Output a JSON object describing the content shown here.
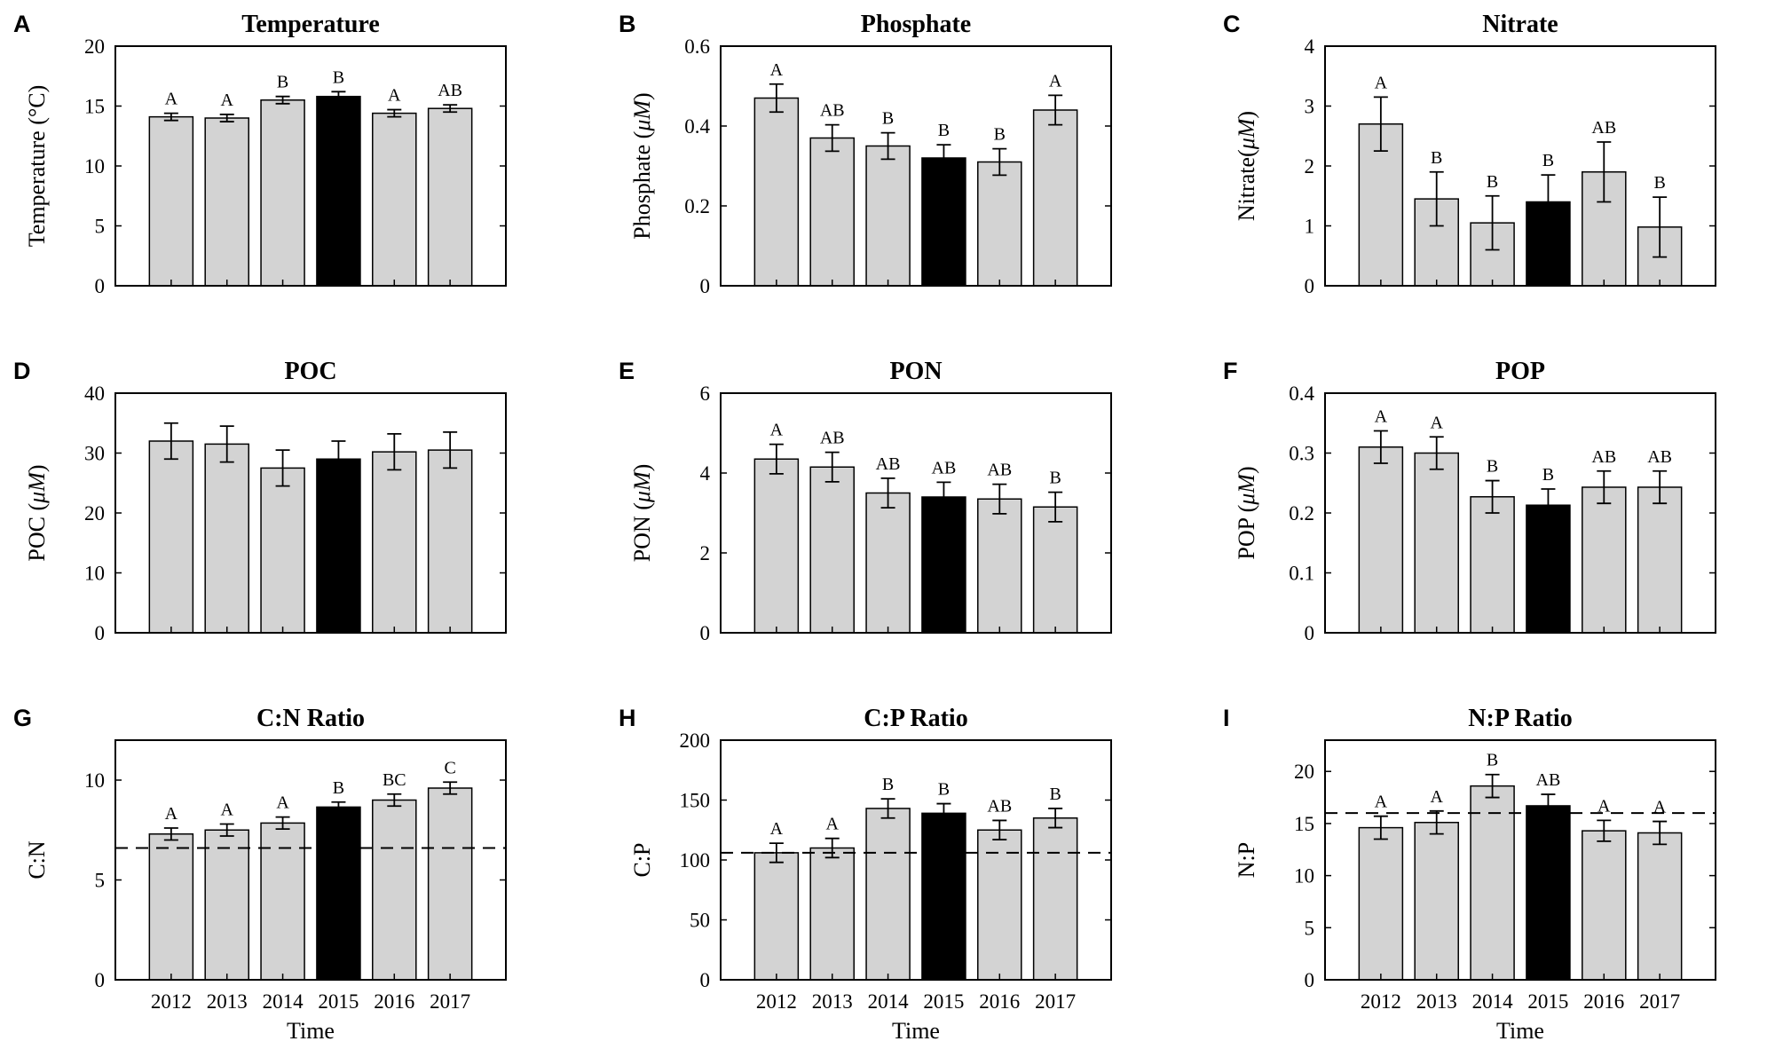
{
  "figure": {
    "common_x_label": "Time",
    "colors": {
      "bar": "#d3d3d3",
      "highlight": "#000000",
      "axis": "#000000"
    }
  },
  "chart_data": [
    {
      "letter": "A",
      "type": "bar",
      "title": "Temperature",
      "ylabel_parts": [
        "Temperature (",
        "°",
        "C)"
      ],
      "categories": [
        "2012",
        "2013",
        "2014",
        "2015",
        "2016",
        "2017"
      ],
      "values": [
        14.1,
        14.0,
        15.5,
        15.8,
        14.4,
        14.8
      ],
      "errors": [
        0.3,
        0.3,
        0.3,
        0.4,
        0.3,
        0.3
      ],
      "sig_labels": [
        "A",
        "A",
        "B",
        "B",
        "A",
        "AB"
      ],
      "highlight_index": 3,
      "ylim": [
        0,
        20
      ],
      "yticks": [
        "0",
        "5",
        "10",
        "15",
        "20"
      ],
      "reference_line": null,
      "show_x_labels": false
    },
    {
      "letter": "B",
      "type": "bar",
      "title": "Phosphate",
      "ylabel_parts": [
        "Phosphate (",
        "μM",
        ")"
      ],
      "categories": [
        "2012",
        "2013",
        "2014",
        "2015",
        "2016",
        "2017"
      ],
      "values": [
        0.47,
        0.37,
        0.35,
        0.32,
        0.31,
        0.44
      ],
      "errors": [
        0.035,
        0.033,
        0.033,
        0.033,
        0.033,
        0.037
      ],
      "sig_labels": [
        "A",
        "AB",
        "B",
        "B",
        "B",
        "A"
      ],
      "highlight_index": 3,
      "ylim": [
        0,
        0.6
      ],
      "yticks": [
        "0",
        "0.2",
        "0.4",
        "0.6"
      ],
      "reference_line": null,
      "show_x_labels": false
    },
    {
      "letter": "C",
      "type": "bar",
      "title": "Nitrate",
      "ylabel_parts": [
        "Nitrate(",
        "μM",
        ")"
      ],
      "categories": [
        "2012",
        "2013",
        "2014",
        "2015",
        "2016",
        "2017"
      ],
      "values": [
        2.7,
        1.45,
        1.05,
        1.4,
        1.9,
        0.98
      ],
      "errors": [
        0.45,
        0.45,
        0.45,
        0.45,
        0.5,
        0.5
      ],
      "sig_labels": [
        "A",
        "B",
        "B",
        "B",
        "AB",
        "B"
      ],
      "highlight_index": 3,
      "ylim": [
        0,
        4
      ],
      "yticks": [
        "0",
        "1",
        "2",
        "3",
        "4"
      ],
      "reference_line": null,
      "show_x_labels": false
    },
    {
      "letter": "D",
      "type": "bar",
      "title": "POC",
      "ylabel_parts": [
        "POC (",
        "μM",
        ")"
      ],
      "categories": [
        "2012",
        "2013",
        "2014",
        "2015",
        "2016",
        "2017"
      ],
      "values": [
        32,
        31.5,
        27.5,
        29,
        30.2,
        30.5
      ],
      "errors": [
        3,
        3,
        3,
        3,
        3,
        3
      ],
      "sig_labels": [],
      "highlight_index": 3,
      "ylim": [
        0,
        40
      ],
      "yticks": [
        "0",
        "10",
        "20",
        "30",
        "40"
      ],
      "reference_line": null,
      "show_x_labels": false
    },
    {
      "letter": "E",
      "type": "bar",
      "title": "PON",
      "ylabel_parts": [
        "PON (",
        "μM",
        ")"
      ],
      "categories": [
        "2012",
        "2013",
        "2014",
        "2015",
        "2016",
        "2017"
      ],
      "values": [
        4.35,
        4.15,
        3.5,
        3.4,
        3.35,
        3.15
      ],
      "errors": [
        0.37,
        0.37,
        0.37,
        0.37,
        0.37,
        0.37
      ],
      "sig_labels": [
        "A",
        "AB",
        "AB",
        "AB",
        "AB",
        "B"
      ],
      "highlight_index": 3,
      "ylim": [
        0,
        6
      ],
      "yticks": [
        "0",
        "2",
        "4",
        "6"
      ],
      "reference_line": null,
      "show_x_labels": false
    },
    {
      "letter": "F",
      "type": "bar",
      "title": "POP",
      "ylabel_parts": [
        "POP (",
        "μM",
        ")"
      ],
      "categories": [
        "2012",
        "2013",
        "2014",
        "2015",
        "2016",
        "2017"
      ],
      "values": [
        0.31,
        0.3,
        0.227,
        0.213,
        0.243,
        0.243
      ],
      "errors": [
        0.027,
        0.027,
        0.027,
        0.027,
        0.027,
        0.027
      ],
      "sig_labels": [
        "A",
        "A",
        "B",
        "B",
        "AB",
        "AB"
      ],
      "highlight_index": 3,
      "ylim": [
        0,
        0.4
      ],
      "yticks": [
        "0",
        "0.1",
        "0.2",
        "0.3",
        "0.4"
      ],
      "reference_line": null,
      "show_x_labels": false
    },
    {
      "letter": "G",
      "type": "bar",
      "title": "C:N Ratio",
      "ylabel_parts": [
        "C:N"
      ],
      "categories": [
        "2012",
        "2013",
        "2014",
        "2015",
        "2016",
        "2017"
      ],
      "values": [
        7.3,
        7.5,
        7.85,
        8.65,
        9.0,
        9.6
      ],
      "errors": [
        0.3,
        0.3,
        0.3,
        0.25,
        0.3,
        0.3
      ],
      "sig_labels": [
        "A",
        "A",
        "A",
        "B",
        "BC",
        "C"
      ],
      "highlight_index": 3,
      "ylim": [
        0,
        12
      ],
      "yticks": [
        "0",
        "5",
        "10"
      ],
      "reference_line": 6.6,
      "show_x_labels": true
    },
    {
      "letter": "H",
      "type": "bar",
      "title": "C:P Ratio",
      "ylabel_parts": [
        "C:P"
      ],
      "categories": [
        "2012",
        "2013",
        "2014",
        "2015",
        "2016",
        "2017"
      ],
      "values": [
        106,
        110,
        143,
        139,
        125,
        135
      ],
      "errors": [
        8,
        8,
        8,
        8,
        8,
        8
      ],
      "sig_labels": [
        "A",
        "A",
        "B",
        "B",
        "AB",
        "B"
      ],
      "highlight_index": 3,
      "ylim": [
        0,
        200
      ],
      "yticks": [
        "0",
        "50",
        "100",
        "150",
        "200"
      ],
      "reference_line": 106,
      "show_x_labels": true
    },
    {
      "letter": "I",
      "type": "bar",
      "title": "N:P Ratio",
      "ylabel_parts": [
        "N:P"
      ],
      "categories": [
        "2012",
        "2013",
        "2014",
        "2015",
        "2016",
        "2017"
      ],
      "values": [
        14.6,
        15.1,
        18.6,
        16.7,
        14.3,
        14.1
      ],
      "errors": [
        1.1,
        1.1,
        1.1,
        1.1,
        1.0,
        1.1
      ],
      "sig_labels": [
        "A",
        "A",
        "B",
        "AB",
        "A",
        "A"
      ],
      "highlight_index": 3,
      "ylim": [
        0,
        23
      ],
      "yticks": [
        "0",
        "5",
        "10",
        "15",
        "20"
      ],
      "reference_line": 16,
      "show_x_labels": true
    }
  ]
}
